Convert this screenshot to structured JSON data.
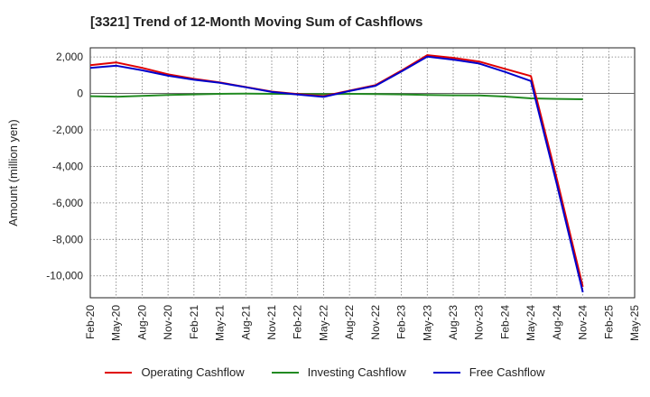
{
  "chart_data": {
    "type": "line",
    "title": "[3321]  Trend of 12-Month Moving Sum of Cashflows",
    "ylabel": "Amount (million yen)",
    "xlabel": "",
    "ylim": [
      -11200,
      2500
    ],
    "yticks": [
      2000,
      0,
      -2000,
      -4000,
      -6000,
      -8000,
      -10000
    ],
    "ytick_labels": [
      "2,000",
      "0",
      "-2,000",
      "-4,000",
      "-6,000",
      "-8,000",
      "-10,000"
    ],
    "xtick_labels": [
      "Feb-20",
      "May-20",
      "Aug-20",
      "Nov-20",
      "Feb-21",
      "May-21",
      "Aug-21",
      "Nov-21",
      "Feb-22",
      "May-22",
      "Aug-22",
      "Nov-22",
      "Feb-23",
      "May-23",
      "Aug-23",
      "Nov-23",
      "Feb-24",
      "May-24",
      "Aug-24",
      "Nov-24",
      "Feb-25",
      "May-25"
    ],
    "x": [
      "Feb-20",
      "May-20",
      "Aug-20",
      "Nov-20",
      "Feb-21",
      "May-21",
      "Aug-21",
      "Nov-21",
      "Feb-22",
      "May-22",
      "Aug-22",
      "Nov-22",
      "Feb-23",
      "May-23",
      "Aug-23",
      "Nov-23",
      "Feb-24",
      "May-24",
      "Aug-24",
      "Nov-24"
    ],
    "grid": true,
    "legend_position": "bottom",
    "series": [
      {
        "name": "Operating Cashflow",
        "color": "#e00000",
        "values": [
          1550,
          1700,
          1400,
          1050,
          800,
          600,
          350,
          100,
          -30,
          -150,
          150,
          450,
          1250,
          2100,
          1950,
          1750,
          1350,
          950,
          -4700,
          -10600
        ]
      },
      {
        "name": "Investing Cashflow",
        "color": "#228b22",
        "values": [
          -150,
          -180,
          -130,
          -80,
          -50,
          -20,
          -10,
          -20,
          -30,
          -40,
          -20,
          -30,
          -50,
          -80,
          -100,
          -110,
          -170,
          -270,
          -300,
          -320
        ]
      },
      {
        "name": "Free Cashflow",
        "color": "#0000cc",
        "values": [
          1400,
          1520,
          1270,
          970,
          750,
          580,
          340,
          80,
          -60,
          -190,
          130,
          420,
          1200,
          2020,
          1850,
          1640,
          1180,
          680,
          -5000,
          -10900
        ]
      }
    ]
  }
}
